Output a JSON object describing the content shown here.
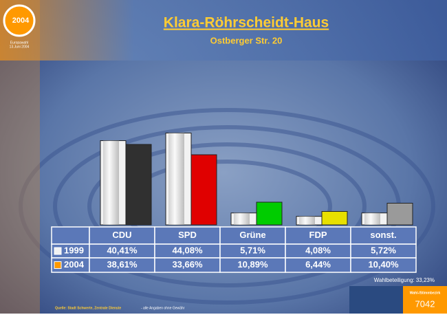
{
  "chart_data": {
    "type": "bar",
    "title": "Klara-Röhrscheidt-Haus",
    "subtitle": "Ostberger Str. 20",
    "categories": [
      "CDU",
      "SPD",
      "Grüne",
      "FDP",
      "sonst."
    ],
    "series": [
      {
        "name": "1999",
        "color": "#f2f2f2",
        "bar_colors": [
          "#f2f2f2",
          "#f2f2f2",
          "#f2f2f2",
          "#f2f2f2",
          "#f2f2f2"
        ],
        "values": [
          40.41,
          44.08,
          5.71,
          4.08,
          5.72
        ],
        "value_labels": [
          "40,41%",
          "44,08%",
          "5,71%",
          "4,08%",
          "5,72%"
        ]
      },
      {
        "name": "2004",
        "color": "#ff9900",
        "bar_colors": [
          "#303030",
          "#e00000",
          "#00cc00",
          "#e8e000",
          "#9a9a9a"
        ],
        "values": [
          38.61,
          33.66,
          10.89,
          6.44,
          10.4
        ],
        "value_labels": [
          "38,61%",
          "33,66%",
          "10,89%",
          "6,44%",
          "10,40%"
        ]
      }
    ],
    "annotation": "Wahlbeteiligung: 33,23%",
    "source": "Quelle: Stadt Schwerte, Zentrale Dienste",
    "disclaimer": "- alle Angaben ohne Gewähr",
    "district_label": "Wahl-/Stimmbezirk",
    "district_number": "7042",
    "logo_text": "2004",
    "logo_lines": [
      "Europawahl",
      "13.Juni 2004"
    ]
  }
}
